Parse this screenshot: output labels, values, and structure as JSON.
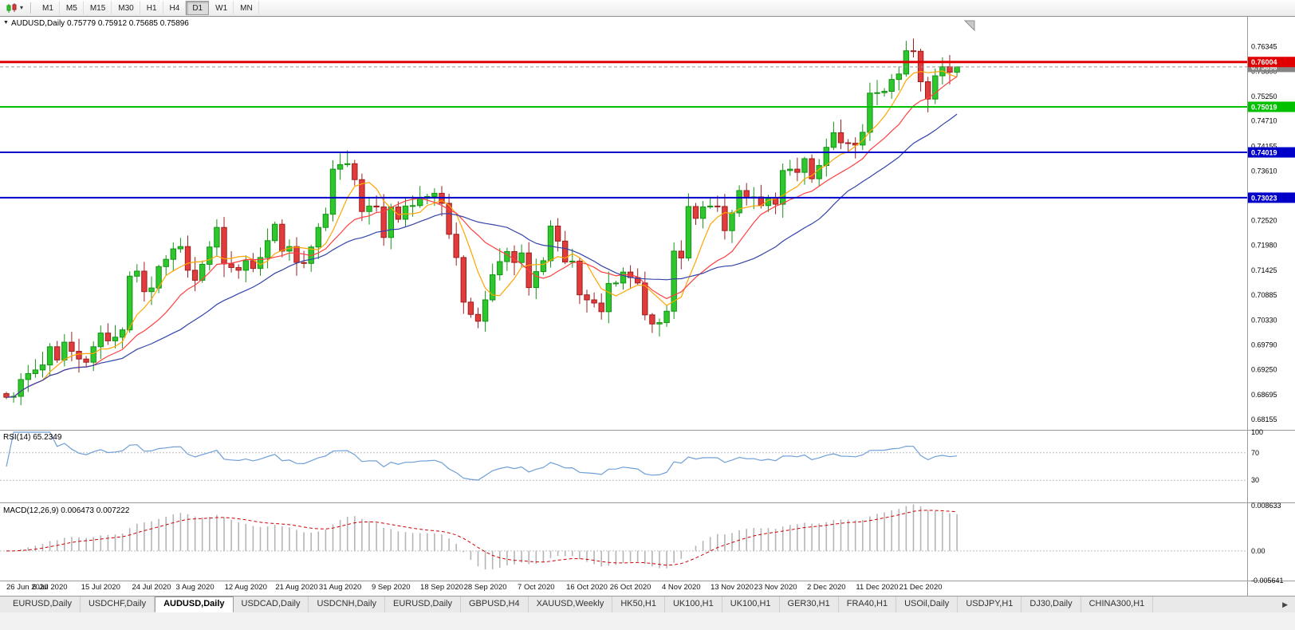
{
  "icons": {
    "chart_type": "candlestick-chart-icon",
    "caret": "▾",
    "title_marker": "▼",
    "tabs_scroll_right": "▶"
  },
  "toolbar": {
    "timeframes": [
      "M1",
      "M5",
      "M15",
      "M30",
      "H1",
      "H4",
      "D1",
      "W1",
      "MN"
    ],
    "active": "D1"
  },
  "chart": {
    "title_line": "AUDUSD,Daily 0.75779 0.75912 0.75685 0.75896",
    "symbol": "AUDUSD",
    "period": "Daily",
    "open": "0.75779",
    "high": "0.75912",
    "low": "0.75685",
    "close": "0.75896"
  },
  "price_axis": {
    "ticks": [
      "0.76345",
      "0.75800",
      "0.75250",
      "0.74710",
      "0.74155",
      "0.73610",
      "0.73055",
      "0.72520",
      "0.71980",
      "0.71425",
      "0.70885",
      "0.70330",
      "0.69790",
      "0.69250",
      "0.68695",
      "0.68155"
    ]
  },
  "hlines": [
    {
      "price": 0.76004,
      "label": "0.76004",
      "color": "#e00000",
      "width": 3
    },
    {
      "price": 0.75019,
      "label": "0.75019",
      "color": "#00c000",
      "width": 2
    },
    {
      "price": 0.74019,
      "label": "0.74019",
      "color": "#0000c8",
      "width": 2
    },
    {
      "price": 0.73023,
      "label": "0.73023",
      "color": "#0000c8",
      "width": 2
    }
  ],
  "current_price": {
    "label": "0.75896",
    "value": 0.75896,
    "box_color": "#848484"
  },
  "rsi": {
    "label": "RSI(14) 65.2349",
    "value": "65.2349",
    "period": 14,
    "levels": [
      "100",
      "70",
      "30"
    ],
    "line_color": "#6f9fd8"
  },
  "macd": {
    "label": "MACD(12,26,9) 0.006473 0.007222",
    "main_value": "0.006473",
    "signal_value": "0.007222",
    "axis_max": "0.008633",
    "axis_zero": "0.00",
    "axis_min": "-0.005641",
    "bar_color": "#b5b5b5",
    "signal_color": "#cc0000"
  },
  "time_axis": {
    "labels": [
      {
        "i": 0,
        "t": "26 Jun 2020"
      },
      {
        "i": 6,
        "t": "6 Jul 2020"
      },
      {
        "i": 13,
        "t": "15 Jul 2020"
      },
      {
        "i": 20,
        "t": "24 Jul 2020"
      },
      {
        "i": 26,
        "t": "3 Aug 2020"
      },
      {
        "i": 33,
        "t": "12 Aug 2020"
      },
      {
        "i": 40,
        "t": "21 Aug 2020"
      },
      {
        "i": 46,
        "t": "31 Aug 2020"
      },
      {
        "i": 53,
        "t": "9 Sep 2020"
      },
      {
        "i": 60,
        "t": "18 Sep 2020"
      },
      {
        "i": 66,
        "t": "28 Sep 2020"
      },
      {
        "i": 73,
        "t": "7 Oct 2020"
      },
      {
        "i": 80,
        "t": "16 Oct 2020"
      },
      {
        "i": 86,
        "t": "26 Oct 2020"
      },
      {
        "i": 93,
        "t": "4 Nov 2020"
      },
      {
        "i": 100,
        "t": "13 Nov 2020"
      },
      {
        "i": 106,
        "t": "23 Nov 2020"
      },
      {
        "i": 113,
        "t": "2 Dec 2020"
      },
      {
        "i": 120,
        "t": "11 Dec 2020"
      },
      {
        "i": 126,
        "t": "21 Dec 2020"
      }
    ]
  },
  "tabs": {
    "items": [
      "EURUSD,Daily",
      "USDCHF,Daily",
      "AUDUSD,Daily",
      "USDCAD,Daily",
      "USDCNH,Daily",
      "EURUSD,Daily",
      "GBPUSD,H4",
      "XAUUSD,Weekly",
      "HK50,H1",
      "UK100,H1",
      "UK100,H1",
      "GER30,H1",
      "FRA40,H1",
      "USOil,Daily",
      "USDJPY,H1",
      "DJ30,Daily",
      "CHINA300,H1"
    ],
    "active_index": 2
  },
  "chart_data": {
    "type": "candlestick",
    "symbol": "AUDUSD",
    "timeframe": "D1",
    "y_range": {
      "min": 0.6796,
      "max": 0.7698
    },
    "first_open": 0.6872,
    "closes": [
      0.6864,
      0.6866,
      0.6903,
      0.6916,
      0.6924,
      0.6935,
      0.6975,
      0.6946,
      0.6985,
      0.6965,
      0.6948,
      0.6941,
      0.6975,
      0.7005,
      0.6988,
      0.6996,
      0.7012,
      0.713,
      0.7141,
      0.7096,
      0.7104,
      0.7151,
      0.7167,
      0.719,
      0.7195,
      0.7143,
      0.7121,
      0.7156,
      0.7194,
      0.7237,
      0.7157,
      0.7149,
      0.7143,
      0.7164,
      0.7147,
      0.7171,
      0.7208,
      0.7244,
      0.7185,
      0.7195,
      0.716,
      0.7158,
      0.7194,
      0.7237,
      0.7266,
      0.7365,
      0.7375,
      0.7377,
      0.7342,
      0.7272,
      0.7284,
      0.7282,
      0.7215,
      0.7282,
      0.7255,
      0.7284,
      0.7285,
      0.7301,
      0.7305,
      0.7312,
      0.729,
      0.7222,
      0.7171,
      0.7073,
      0.7046,
      0.7031,
      0.7078,
      0.7133,
      0.7162,
      0.7184,
      0.716,
      0.7181,
      0.7105,
      0.714,
      0.7164,
      0.724,
      0.7207,
      0.7161,
      0.7163,
      0.7089,
      0.7078,
      0.7071,
      0.7052,
      0.7114,
      0.7115,
      0.7139,
      0.7127,
      0.7115,
      0.7045,
      0.7025,
      0.7028,
      0.7053,
      0.7185,
      0.717,
      0.7283,
      0.7257,
      0.7282,
      0.7284,
      0.7283,
      0.723,
      0.7269,
      0.7318,
      0.7302,
      0.7304,
      0.7285,
      0.7303,
      0.7288,
      0.7362,
      0.7365,
      0.7358,
      0.7388,
      0.7344,
      0.7373,
      0.7413,
      0.7445,
      0.7423,
      0.7422,
      0.7418,
      0.7446,
      0.7532,
      0.7533,
      0.7536,
      0.7562,
      0.7574,
      0.7625,
      0.7624,
      0.7557,
      0.7519,
      0.757,
      0.759,
      0.75779,
      0.75896
    ],
    "last_candle": {
      "open": 0.75779,
      "high": 0.75912,
      "low": 0.75685,
      "close": 0.75896
    },
    "up": {
      "fill": "#2ec72e",
      "stroke": "#149414"
    },
    "down": {
      "fill": "#e13b3b",
      "stroke": "#9e1f1f"
    },
    "ma": [
      {
        "name": "ma-fast",
        "period": 6,
        "color": "#ffa500"
      },
      {
        "name": "ma-mid",
        "period": 13,
        "color": "#ff4040"
      },
      {
        "name": "ma-slow",
        "period": 25,
        "color": "#3344aa"
      }
    ]
  }
}
